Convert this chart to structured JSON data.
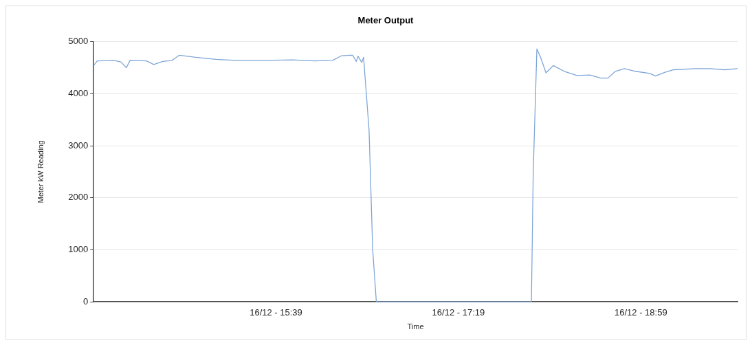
{
  "chart_data": {
    "type": "line",
    "title": "Meter Output",
    "xlabel": "Time",
    "ylabel": "Meter kW Reading",
    "xlim": [
      "--12-16T13:59",
      "--12-16T19:52"
    ],
    "xticks": [
      {
        "value": "--12-16T15:39",
        "label": "16/12 - 15:39"
      },
      {
        "value": "--12-16T17:19",
        "label": "16/12 - 17:19"
      },
      {
        "value": "--12-16T18:59",
        "label": "16/12 - 18:59"
      }
    ],
    "ylim": [
      0,
      5000
    ],
    "yticks": [
      0,
      1000,
      2000,
      3000,
      4000,
      5000
    ],
    "grid": "y",
    "legend": false,
    "marker": "none",
    "series": [
      {
        "color": "#7ea6d8",
        "x": [
          "--12-16T13:59",
          "--12-16T14:01",
          "--12-16T14:10",
          "--12-16T14:14",
          "--12-16T14:17",
          "--12-16T14:19",
          "--12-16T14:28",
          "--12-16T14:32",
          "--12-16T14:37",
          "--12-16T14:42",
          "--12-16T14:46",
          "--12-16T14:55",
          "--12-16T15:06",
          "--12-16T15:17",
          "--12-16T15:33",
          "--12-16T15:48",
          "--12-16T16:00",
          "--12-16T16:10",
          "--12-16T16:15",
          "--12-16T16:21",
          "--12-16T16:23",
          "--12-16T16:24",
          "--12-16T16:26",
          "--12-16T16:27",
          "--12-16T16:30",
          "--12-16T16:32",
          "--12-16T16:34",
          "--12-16T17:59",
          "--12-16T18:00",
          "--12-16T18:02",
          "--12-16T18:04",
          "--12-16T18:07",
          "--12-16T18:11",
          "--12-16T18:17",
          "--12-16T18:24",
          "--12-16T18:31",
          "--12-16T18:37",
          "--12-16T18:41",
          "--12-16T18:45",
          "--12-16T18:50",
          "--12-16T18:56",
          "--12-16T19:04",
          "--12-16T19:07",
          "--12-16T19:12",
          "--12-16T19:17",
          "--12-16T19:29",
          "--12-16T19:37",
          "--12-16T19:45",
          "--12-16T19:52"
        ],
        "values": [
          4540,
          4630,
          4640,
          4610,
          4500,
          4640,
          4630,
          4560,
          4620,
          4640,
          4740,
          4700,
          4660,
          4640,
          4640,
          4650,
          4630,
          4640,
          4730,
          4740,
          4620,
          4720,
          4600,
          4700,
          3300,
          1000,
          0,
          0,
          2500,
          4860,
          4700,
          4400,
          4540,
          4430,
          4350,
          4360,
          4300,
          4300,
          4430,
          4480,
          4430,
          4390,
          4340,
          4410,
          4460,
          4480,
          4480,
          4460,
          4480
        ]
      }
    ]
  }
}
